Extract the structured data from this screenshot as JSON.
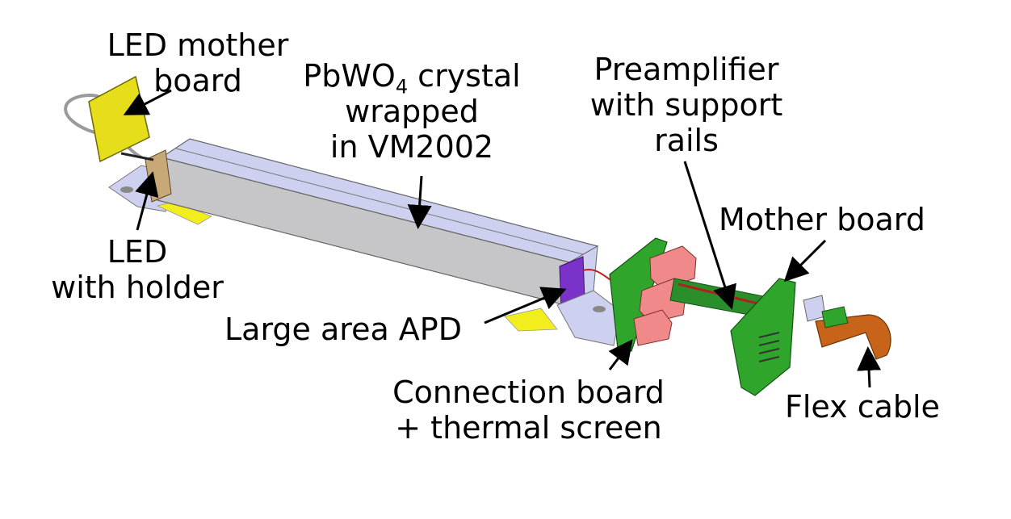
{
  "labels": {
    "led_mother_board": [
      "LED mother",
      "board"
    ],
    "crystal": {
      "line1_prefix": "PbWO",
      "line1_sub": "4",
      "line1_suffix": " crystal",
      "line2": "wrapped",
      "line3": "in VM2002"
    },
    "preamplifier": [
      "Preamplifier",
      "with support",
      "rails"
    ],
    "mother_board": "Mother board",
    "led_holder": [
      "LED",
      "with holder"
    ],
    "apd": "Large area APD",
    "connection_board": [
      "Connection board",
      "+ thermal screen"
    ],
    "flex_cable": "Flex cable"
  },
  "colors": {
    "crystal_top": "#cdd0ee",
    "crystal_side": "#c6c6c8",
    "yellow_board": "#e6de1a",
    "yellow_strip": "#f2ee1e",
    "led_holder": "#c9a878",
    "apd": "#7a32c8",
    "green_board": "#2fa52c",
    "pink_preamp": "#f08a8a",
    "flex_cable": "#c8641a"
  }
}
